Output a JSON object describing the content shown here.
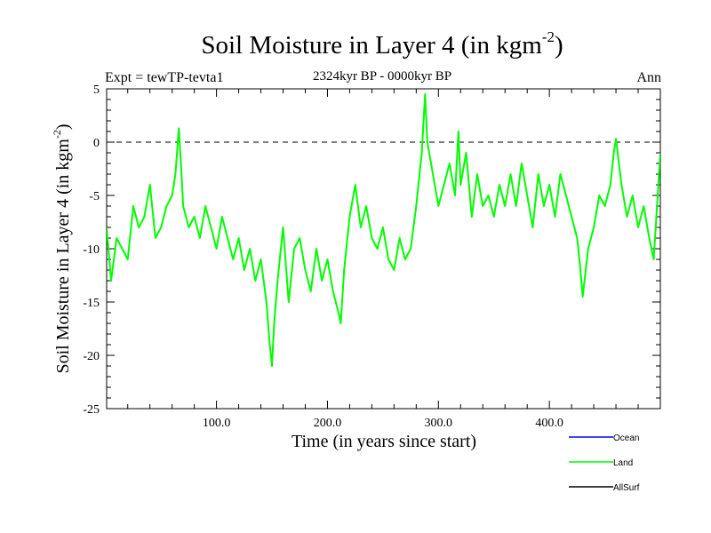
{
  "chart_data": {
    "type": "line",
    "title": "Soil Moisture in Layer 4 (in kgm",
    "title_superscript": "-2",
    "title_suffix": ")",
    "subtitle": "2324kyr BP - 0000kyr BP",
    "left_label": "Expt = tewTP-tevta1",
    "right_label": "Ann",
    "xlabel": "Time (in years since start)",
    "ylabel": "Soil Moisture in Layer 4 (in kgm",
    "ylabel_superscript": "-2",
    "ylabel_suffix": ")",
    "xlim": [
      1,
      500
    ],
    "ylim": [
      -25,
      5
    ],
    "x_ticks": [
      100,
      200,
      300,
      400
    ],
    "x_tick_labels": [
      "100.0",
      "200.0",
      "300.0",
      "400.0"
    ],
    "y_ticks": [
      5,
      0,
      -5,
      -10,
      -15,
      -20,
      -25
    ],
    "y_tick_labels": [
      "5",
      "0",
      "-5",
      "-10",
      "-15",
      "-20",
      "-25"
    ],
    "reference_line_y": 0,
    "legend": [
      {
        "name": "Ocean",
        "color": "#0000ff"
      },
      {
        "name": "Land",
        "color": "#00ff00"
      },
      {
        "name": "AllSurf",
        "color": "#000000"
      }
    ],
    "series": [
      {
        "name": "Land",
        "color": "#00ff00",
        "x": [
          1,
          5,
          10,
          15,
          20,
          25,
          30,
          35,
          40,
          45,
          50,
          55,
          60,
          63,
          66,
          68,
          70,
          75,
          80,
          85,
          90,
          95,
          100,
          105,
          110,
          115,
          120,
          125,
          130,
          135,
          140,
          145,
          148,
          150,
          152,
          155,
          160,
          165,
          170,
          175,
          180,
          185,
          190,
          195,
          200,
          205,
          210,
          212,
          215,
          220,
          225,
          230,
          235,
          240,
          245,
          250,
          255,
          260,
          265,
          270,
          275,
          280,
          285,
          288,
          290,
          295,
          300,
          305,
          310,
          315,
          318,
          320,
          325,
          330,
          335,
          340,
          345,
          350,
          355,
          360,
          365,
          370,
          375,
          380,
          385,
          390,
          395,
          400,
          405,
          410,
          415,
          420,
          425,
          428,
          430,
          435,
          440,
          445,
          450,
          455,
          458,
          460,
          465,
          470,
          475,
          480,
          485,
          490,
          494,
          497,
          500
        ],
        "values": [
          -8,
          -13,
          -9,
          -10,
          -11,
          -6,
          -8,
          -7,
          -4,
          -9,
          -8,
          -6,
          -5,
          -3,
          1.3,
          -2,
          -6,
          -8,
          -7,
          -9,
          -6,
          -8,
          -10,
          -7,
          -9,
          -11,
          -9,
          -12,
          -10,
          -13,
          -11,
          -15,
          -19,
          -21,
          -17,
          -13,
          -8,
          -15,
          -10,
          -9,
          -12,
          -14,
          -10,
          -13,
          -11,
          -14,
          -16,
          -17,
          -12,
          -7,
          -4,
          -8,
          -6,
          -9,
          -10,
          -8,
          -11,
          -12,
          -9,
          -11,
          -10,
          -6,
          -1,
          4.5,
          0,
          -3,
          -6,
          -4,
          -2,
          -5,
          1,
          -4,
          -1,
          -7,
          -3,
          -6,
          -5,
          -7,
          -4,
          -6,
          -3,
          -6,
          -2,
          -5,
          -8,
          -3,
          -6,
          -4,
          -7,
          -3,
          -5,
          -7,
          -9,
          -12,
          -14.5,
          -10,
          -8,
          -5,
          -6,
          -4,
          -1,
          0.3,
          -4,
          -7,
          -5,
          -8,
          -6,
          -9,
          -11,
          -6,
          -1
        ]
      }
    ]
  }
}
